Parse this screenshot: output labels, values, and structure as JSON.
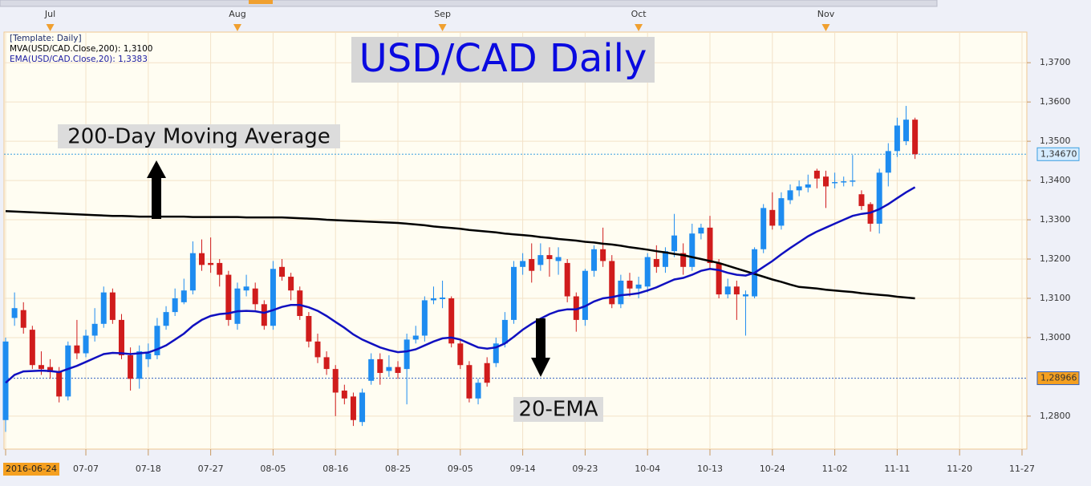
{
  "chart_data": {
    "type": "candlestick",
    "title": "USD/CAD Daily",
    "template": "[Template: Daily]",
    "annotations": [
      "200-Day Moving Average",
      "20-EMA"
    ],
    "categories": [
      "2016-06-24",
      null,
      null,
      null,
      null,
      null,
      null,
      null,
      null,
      "07-07",
      null,
      null,
      null,
      null,
      null,
      null,
      "07-18",
      null,
      null,
      null,
      null,
      null,
      null,
      "07-27",
      null,
      null,
      null,
      null,
      null,
      null,
      "08-05",
      null,
      null,
      null,
      null,
      null,
      null,
      "08-16",
      null,
      null,
      null,
      null,
      null,
      null,
      "08-25",
      null,
      null,
      null,
      null,
      null,
      null,
      "09-05",
      null,
      null,
      null,
      null,
      null,
      null,
      "09-14",
      null,
      null,
      null,
      null,
      null,
      null,
      "09-23",
      null,
      null,
      null,
      null,
      null,
      null,
      "10-04",
      null,
      null,
      null,
      null,
      null,
      null,
      "10-13",
      null,
      null,
      null,
      null,
      null,
      null,
      "10-24",
      null,
      null,
      null,
      null,
      null,
      null,
      "11-02",
      null,
      null,
      null,
      null,
      null,
      null,
      "11-11",
      null,
      null,
      null,
      null,
      null,
      null,
      "11-20",
      null,
      null,
      null,
      null,
      null,
      null,
      "11-27"
    ],
    "month_markers": {
      "labels": [
        "Jul",
        "Aug",
        "Sep",
        "Oct",
        "Nov"
      ],
      "category_index": [
        5,
        26,
        49,
        71,
        92
      ]
    },
    "candles": {
      "up_color": "#1e8cf0",
      "down_color": "#d01c1c",
      "open": [
        1.279,
        1.305,
        1.307,
        1.302,
        1.293,
        1.2925,
        1.2915,
        1.285,
        1.298,
        1.296,
        1.3005,
        1.3035,
        1.3115,
        1.3045,
        1.2955,
        1.2895,
        1.2945,
        1.2955,
        1.303,
        1.3065,
        1.309,
        1.312,
        1.3215,
        1.319,
        1.319,
        1.316,
        1.3035,
        1.312,
        1.3125,
        1.3085,
        1.303,
        1.318,
        1.3155,
        1.312,
        1.3055,
        1.299,
        1.295,
        1.292,
        1.2865,
        1.285,
        1.2785,
        1.289,
        1.2945,
        1.2915,
        1.2925,
        1.292,
        1.2995,
        1.3005,
        1.3095,
        1.3098,
        1.31,
        1.2985,
        1.293,
        1.2845,
        1.2935,
        1.2935,
        1.2985,
        1.3045,
        1.318,
        1.32,
        1.3185,
        1.321,
        1.3195,
        1.319,
        1.3105,
        1.3045,
        1.317,
        1.3225,
        1.3195,
        1.3085,
        1.3145,
        1.3125,
        1.313,
        1.32,
        1.318,
        1.322,
        1.3215,
        1.318,
        1.3265,
        1.328,
        1.319,
        1.311,
        1.313,
        1.3105,
        1.3105,
        1.3225,
        1.3325,
        1.3285,
        1.335,
        1.3375,
        1.3382,
        1.3425,
        1.341,
        1.3393,
        1.3395,
        1.3397,
        1.3365,
        1.334,
        1.329,
        1.342,
        1.3475,
        1.35,
        1.3555,
        null,
        null,
        null,
        null,
        null,
        null,
        null,
        null,
        null,
        null,
        null,
        null
      ],
      "high": [
        1.3,
        1.3115,
        1.309,
        1.303,
        1.2965,
        1.2945,
        1.2925,
        1.299,
        1.3045,
        1.302,
        1.3075,
        1.313,
        1.3125,
        1.306,
        1.2975,
        1.298,
        1.2985,
        1.305,
        1.308,
        1.3125,
        1.315,
        1.3245,
        1.325,
        1.3255,
        1.32,
        1.317,
        1.314,
        1.316,
        1.314,
        1.3095,
        1.3195,
        1.32,
        1.3165,
        1.313,
        1.3065,
        1.301,
        1.2965,
        1.293,
        1.288,
        1.286,
        1.287,
        1.296,
        1.296,
        1.2955,
        1.294,
        1.301,
        1.303,
        1.3105,
        1.313,
        1.3145,
        1.3105,
        1.2995,
        1.294,
        1.2895,
        1.295,
        1.3,
        1.3065,
        1.3195,
        1.3215,
        1.324,
        1.324,
        1.323,
        1.323,
        1.32,
        1.3115,
        1.3175,
        1.3235,
        1.328,
        1.321,
        1.316,
        1.3165,
        1.3155,
        1.3215,
        1.3235,
        1.323,
        1.3315,
        1.324,
        1.329,
        1.329,
        1.331,
        1.32,
        1.315,
        1.3145,
        1.312,
        1.323,
        1.334,
        1.337,
        1.337,
        1.339,
        1.34,
        1.3415,
        1.343,
        1.3425,
        1.342,
        1.341,
        1.3465,
        1.3375,
        1.3345,
        1.343,
        1.3495,
        1.356,
        1.359,
        1.356,
        null,
        null,
        null,
        null,
        null,
        null,
        null,
        null,
        null,
        null,
        null,
        null
      ],
      "low": [
        1.276,
        1.303,
        1.301,
        1.292,
        1.2905,
        1.2895,
        1.2835,
        1.284,
        1.2945,
        1.295,
        1.299,
        1.3025,
        1.3035,
        1.2945,
        1.2865,
        1.287,
        1.2925,
        1.2945,
        1.302,
        1.3055,
        1.3085,
        1.311,
        1.317,
        1.3165,
        1.313,
        1.303,
        1.302,
        1.3105,
        1.307,
        1.302,
        1.302,
        1.3145,
        1.3095,
        1.3045,
        1.2975,
        1.2935,
        1.2905,
        1.28,
        1.283,
        1.2775,
        1.2775,
        1.288,
        1.288,
        1.29,
        1.2895,
        1.283,
        1.2985,
        1.299,
        1.3085,
        1.3075,
        1.2975,
        1.292,
        1.2835,
        1.283,
        1.2875,
        1.2925,
        1.2975,
        1.3035,
        1.316,
        1.314,
        1.317,
        1.3155,
        1.316,
        1.309,
        1.3015,
        1.303,
        1.3155,
        1.318,
        1.3075,
        1.3075,
        1.3105,
        1.31,
        1.3115,
        1.3165,
        1.3165,
        1.3205,
        1.316,
        1.317,
        1.325,
        1.3175,
        1.31,
        1.31,
        1.3045,
        1.3005,
        1.31,
        1.3215,
        1.3275,
        1.3275,
        1.334,
        1.336,
        1.337,
        1.338,
        1.333,
        1.338,
        1.3385,
        1.3385,
        1.3325,
        1.327,
        1.3265,
        1.3385,
        1.346,
        1.349,
        1.3455,
        null,
        null,
        null,
        null,
        null,
        null,
        null,
        null,
        null,
        null,
        null,
        null
      ],
      "close": [
        1.299,
        1.3075,
        1.3025,
        1.293,
        1.292,
        1.2912,
        1.285,
        1.298,
        1.296,
        1.3005,
        1.3035,
        1.3115,
        1.3045,
        1.2955,
        1.2895,
        1.2965,
        1.296,
        1.303,
        1.3065,
        1.31,
        1.312,
        1.3215,
        1.3185,
        1.3185,
        1.316,
        1.3045,
        1.3125,
        1.313,
        1.3085,
        1.303,
        1.3175,
        1.3155,
        1.312,
        1.3055,
        1.299,
        1.295,
        1.292,
        1.286,
        1.2845,
        1.279,
        1.286,
        1.2945,
        1.291,
        1.2925,
        1.291,
        1.2995,
        1.3005,
        1.3095,
        1.31,
        1.3102,
        1.2985,
        1.293,
        1.2845,
        1.2885,
        1.2885,
        1.2985,
        1.3045,
        1.318,
        1.3195,
        1.317,
        1.321,
        1.32,
        1.3205,
        1.3105,
        1.3045,
        1.317,
        1.3225,
        1.3195,
        1.3085,
        1.3145,
        1.3125,
        1.3135,
        1.3205,
        1.318,
        1.322,
        1.326,
        1.318,
        1.3265,
        1.328,
        1.319,
        1.311,
        1.313,
        1.311,
        1.311,
        1.3225,
        1.333,
        1.3285,
        1.3355,
        1.3375,
        1.3385,
        1.339,
        1.3405,
        1.3385,
        1.3396,
        1.3398,
        1.34,
        1.3335,
        1.329,
        1.342,
        1.3475,
        1.354,
        1.3555,
        1.3467,
        null,
        null,
        null,
        null,
        null,
        null,
        null,
        null,
        null,
        null,
        null,
        null
      ]
    },
    "series": [
      {
        "legend": "MVA(USD/CAD.Close,200): 1,3100",
        "color": "#000000",
        "values": [
          1.3322,
          1.3321,
          1.332,
          1.3319,
          1.3318,
          1.3317,
          1.3316,
          1.3315,
          1.3314,
          1.3313,
          1.3312,
          1.3311,
          1.331,
          1.331,
          1.3309,
          1.3308,
          1.3308,
          1.3308,
          1.3308,
          1.3308,
          1.3308,
          1.3307,
          1.3307,
          1.3307,
          1.3307,
          1.3307,
          1.3307,
          1.3306,
          1.3306,
          1.3306,
          1.3306,
          1.3306,
          1.3305,
          1.3304,
          1.3303,
          1.3302,
          1.33,
          1.3299,
          1.3298,
          1.3297,
          1.3296,
          1.3295,
          1.3294,
          1.3293,
          1.3292,
          1.329,
          1.3288,
          1.3286,
          1.3283,
          1.3281,
          1.3279,
          1.3277,
          1.3274,
          1.3272,
          1.327,
          1.3268,
          1.3265,
          1.3263,
          1.3261,
          1.3259,
          1.3256,
          1.3254,
          1.3251,
          1.3249,
          1.3247,
          1.3244,
          1.3242,
          1.3239,
          1.3237,
          1.3234,
          1.323,
          1.3227,
          1.3224,
          1.322,
          1.3217,
          1.3213,
          1.321,
          1.3205,
          1.32,
          1.3195,
          1.319,
          1.3183,
          1.3176,
          1.3169,
          1.3162,
          1.3155,
          1.3148,
          1.3142,
          1.3135,
          1.3129,
          1.3127,
          1.3125,
          1.3122,
          1.312,
          1.3118,
          1.3116,
          1.3113,
          1.3111,
          1.3109,
          1.3107,
          1.3104,
          1.3102,
          1.31,
          null,
          null,
          null,
          null,
          null,
          null,
          null,
          null,
          null,
          null,
          null,
          null
        ]
      },
      {
        "legend": "EMA(USD/CAD.Close,20): 1,3383",
        "color": "#1010c0",
        "values": [
          1.2885,
          1.2905,
          1.2914,
          1.2915,
          1.2916,
          1.2915,
          1.2912,
          1.292,
          1.2928,
          1.2938,
          1.2948,
          1.2958,
          1.2961,
          1.296,
          1.2958,
          1.296,
          1.2962,
          1.297,
          1.298,
          1.2995,
          1.301,
          1.303,
          1.3045,
          1.3055,
          1.306,
          1.3062,
          1.3067,
          1.3068,
          1.3067,
          1.3063,
          1.307,
          1.3078,
          1.3083,
          1.3083,
          1.3077,
          1.3068,
          1.3055,
          1.304,
          1.3025,
          1.3008,
          1.2995,
          1.2985,
          1.2975,
          1.2968,
          1.2963,
          1.2965,
          1.297,
          1.298,
          1.299,
          1.2998,
          1.3,
          1.2995,
          1.2985,
          1.2975,
          1.2972,
          1.2975,
          1.2985,
          1.3002,
          1.302,
          1.3035,
          1.3048,
          1.306,
          1.3068,
          1.3072,
          1.3072,
          1.308,
          1.3092,
          1.31,
          1.3103,
          1.3108,
          1.311,
          1.3113,
          1.312,
          1.3128,
          1.3138,
          1.3148,
          1.3152,
          1.316,
          1.317,
          1.3175,
          1.3172,
          1.3165,
          1.316,
          1.3158,
          1.3165,
          1.318,
          1.3195,
          1.3212,
          1.3228,
          1.3243,
          1.3258,
          1.327,
          1.328,
          1.329,
          1.33,
          1.331,
          1.3315,
          1.3318,
          1.3327,
          1.334,
          1.3355,
          1.337,
          1.3383,
          null,
          null,
          null,
          null,
          null,
          null,
          null,
          null,
          null,
          null,
          null,
          null
        ]
      }
    ],
    "price_lines": [
      {
        "value": 1.3467,
        "label": "1,34670",
        "color": "#3a9ee0",
        "fill": "#d6ecff"
      },
      {
        "value": 1.28966,
        "label": "1,28966",
        "color": "#3060c0",
        "fill": "#f5a020"
      }
    ],
    "ylim": [
      1.2716,
      1.3778
    ],
    "yticks": [
      {
        "value": 1.28,
        "label": "1,2800"
      },
      {
        "value": 1.3,
        "label": "1,3000"
      },
      {
        "value": 1.31,
        "label": "1,3100"
      },
      {
        "value": 1.32,
        "label": "1,3200"
      },
      {
        "value": 1.33,
        "label": "1,3300"
      },
      {
        "value": 1.34,
        "label": "1,3400"
      },
      {
        "value": 1.35,
        "label": "1,3500"
      },
      {
        "value": 1.36,
        "label": "1,3600"
      },
      {
        "value": 1.37,
        "label": "1,3700"
      }
    ],
    "grid": true
  }
}
